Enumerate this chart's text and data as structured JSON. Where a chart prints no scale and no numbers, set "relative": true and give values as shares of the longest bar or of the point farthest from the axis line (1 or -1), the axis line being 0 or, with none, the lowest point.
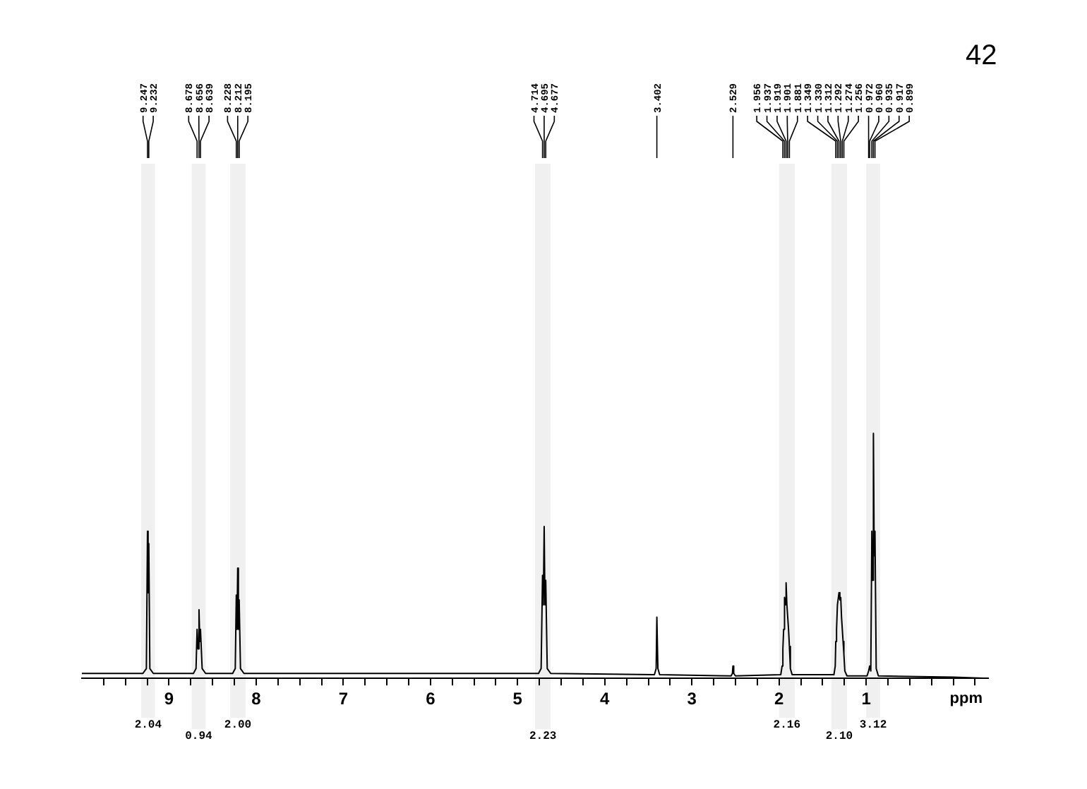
{
  "chart_data": {
    "type": "line",
    "relative": true,
    "xlabel": "ppm",
    "color": "#000000",
    "legend": false,
    "grid": false,
    "xlim": [
      10.0,
      -0.4
    ],
    "xticks": [
      {
        "value": 9.75,
        "label": null
      },
      {
        "value": 9.5,
        "label": null
      },
      {
        "value": 9.25,
        "label": null
      },
      9,
      {
        "value": 8.75,
        "label": null
      },
      {
        "value": 8.5,
        "label": null
      },
      {
        "value": 8.25,
        "label": null
      },
      8,
      {
        "value": 7.75,
        "label": null
      },
      {
        "value": 7.5,
        "label": null
      },
      {
        "value": 7.25,
        "label": null
      },
      7,
      {
        "value": 6.75,
        "label": null
      },
      {
        "value": 6.5,
        "label": null
      },
      {
        "value": 6.25,
        "label": null
      },
      6,
      {
        "value": 5.75,
        "label": null
      },
      {
        "value": 5.5,
        "label": null
      },
      {
        "value": 5.25,
        "label": null
      },
      5,
      {
        "value": 4.75,
        "label": null
      },
      {
        "value": 4.5,
        "label": null
      },
      {
        "value": 4.25,
        "label": null
      },
      4,
      {
        "value": 3.75,
        "label": null
      },
      {
        "value": 3.5,
        "label": null
      },
      {
        "value": 3.25,
        "label": null
      },
      3,
      {
        "value": 2.75,
        "label": null
      },
      {
        "value": 2.5,
        "label": null
      },
      {
        "value": 2.25,
        "label": null
      },
      2,
      {
        "value": 1.75,
        "label": null
      },
      {
        "value": 1.5,
        "label": null
      },
      {
        "value": 1.25,
        "label": null
      },
      1,
      {
        "value": 0.75,
        "label": null
      },
      {
        "value": 0.5,
        "label": null
      },
      {
        "value": 0.25,
        "label": null
      },
      {
        "value": 0,
        "label": null
      },
      {
        "value": -0.25,
        "label": null
      }
    ],
    "x": [
      10.0,
      9.3,
      9.26,
      9.247,
      9.24,
      9.232,
      9.22,
      9.18,
      8.72,
      8.69,
      8.678,
      8.667,
      8.656,
      8.647,
      8.639,
      8.62,
      8.58,
      8.27,
      8.24,
      8.228,
      8.22,
      8.212,
      8.204,
      8.195,
      8.18,
      8.14,
      4.76,
      4.73,
      4.714,
      4.705,
      4.695,
      4.686,
      4.677,
      4.66,
      4.62,
      3.43,
      3.41,
      3.402,
      3.39,
      3.37,
      2.55,
      2.535,
      2.529,
      2.52,
      2.5,
      1.98,
      1.965,
      1.956,
      1.947,
      1.937,
      1.928,
      1.919,
      1.91,
      1.901,
      1.891,
      1.881,
      1.87,
      1.85,
      1.37,
      1.355,
      1.349,
      1.34,
      1.33,
      1.321,
      1.312,
      1.302,
      1.292,
      1.283,
      1.274,
      1.265,
      1.256,
      1.245,
      1.22,
      0.99,
      0.972,
      0.96,
      0.947,
      0.935,
      0.926,
      0.917,
      0.908,
      0.899,
      0.885,
      0.86,
      0.0,
      -0.4
    ],
    "values": [
      0.02,
      0.02,
      0.04,
      0.6,
      0.35,
      0.55,
      0.04,
      0.02,
      0.02,
      0.04,
      0.2,
      0.12,
      0.28,
      0.15,
      0.2,
      0.04,
      0.02,
      0.02,
      0.04,
      0.34,
      0.2,
      0.45,
      0.2,
      0.32,
      0.04,
      0.02,
      0.02,
      0.04,
      0.42,
      0.3,
      0.62,
      0.3,
      0.4,
      0.04,
      0.02,
      0.015,
      0.04,
      0.25,
      0.04,
      0.015,
      0.01,
      0.02,
      0.05,
      0.02,
      0.01,
      0.015,
      0.05,
      0.12,
      0.2,
      0.33,
      0.3,
      0.39,
      0.3,
      0.3,
      0.2,
      0.13,
      0.04,
      0.015,
      0.015,
      0.05,
      0.15,
      0.2,
      0.3,
      0.3,
      0.35,
      0.32,
      0.33,
      0.25,
      0.25,
      0.15,
      0.1,
      0.03,
      0.01,
      0.01,
      0.03,
      0.05,
      0.03,
      0.6,
      0.4,
      1.0,
      0.5,
      0.6,
      0.04,
      0.01,
      0.005,
      0.0
    ],
    "annotations": [
      {
        "text": "9.247",
        "x": 9.247
      },
      {
        "text": "9.232",
        "x": 9.232
      },
      {
        "text": "8.678",
        "x": 8.678
      },
      {
        "text": "8.656",
        "x": 8.656
      },
      {
        "text": "8.639",
        "x": 8.639
      },
      {
        "text": "8.228",
        "x": 8.228
      },
      {
        "text": "8.212",
        "x": 8.212
      },
      {
        "text": "8.195",
        "x": 8.195
      },
      {
        "text": "4.714",
        "x": 4.714
      },
      {
        "text": "4.695",
        "x": 4.695
      },
      {
        "text": "4.677",
        "x": 4.677
      },
      {
        "text": "3.402",
        "x": 3.402
      },
      {
        "text": "2.529",
        "x": 2.529
      },
      {
        "text": "1.956",
        "x": 1.956
      },
      {
        "text": "1.937",
        "x": 1.937
      },
      {
        "text": "1.919",
        "x": 1.919
      },
      {
        "text": "1.901",
        "x": 1.901
      },
      {
        "text": "1.881",
        "x": 1.881
      },
      {
        "text": "1.349",
        "x": 1.349
      },
      {
        "text": "1.330",
        "x": 1.33
      },
      {
        "text": "1.312",
        "x": 1.312
      },
      {
        "text": "1.292",
        "x": 1.292
      },
      {
        "text": "1.274",
        "x": 1.274
      },
      {
        "text": "1.256",
        "x": 1.256
      },
      {
        "text": "0.972",
        "x": 0.972
      },
      {
        "text": "0.960",
        "x": 0.96
      },
      {
        "text": "0.935",
        "x": 0.935
      },
      {
        "text": "0.917",
        "x": 0.917
      },
      {
        "text": "0.899",
        "x": 0.899
      },
      "42"
    ],
    "bands": [
      {
        "axis": "x",
        "from": 9.32,
        "to": 9.16,
        "label": "2.04"
      },
      {
        "axis": "x",
        "from": 8.74,
        "to": 8.58,
        "label": "0.94"
      },
      {
        "axis": "x",
        "from": 8.3,
        "to": 8.12,
        "label": "2.00"
      },
      {
        "axis": "x",
        "from": 4.8,
        "to": 4.62,
        "label": "2.23"
      },
      {
        "axis": "x",
        "from": 2.0,
        "to": 1.82,
        "label": "2.16"
      },
      {
        "axis": "x",
        "from": 1.4,
        "to": 1.22,
        "label": "2.10"
      },
      {
        "axis": "x",
        "from": 1.0,
        "to": 0.84,
        "label": "3.12"
      }
    ]
  }
}
